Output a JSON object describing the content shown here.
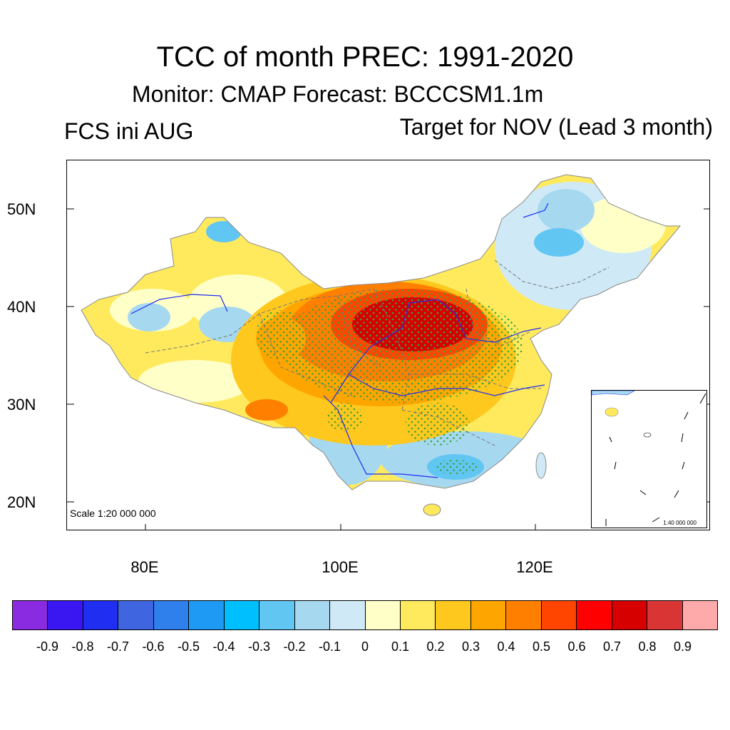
{
  "title": "TCC of month PREC: 1991-2020",
  "subtitle": "Monitor: CMAP   Forecast: BCCCSM1.1m",
  "left_label": "FCS ini AUG",
  "right_label": "Target for NOV (Lead 3 month)",
  "map": {
    "y_labels": [
      "50N",
      "40N",
      "30N",
      "20N"
    ],
    "x_labels": [
      "80E",
      "100E",
      "120E"
    ],
    "scale_main": "Scale 1:20 000 000",
    "scale_inset": "1:40 000 000",
    "significance_marker_color": "#3aa63a"
  },
  "colorbar": {
    "colors": [
      "#8a2be2",
      "#3a16f0",
      "#1f2ef0",
      "#3f66e0",
      "#2f7fec",
      "#1e9af5",
      "#00bfff",
      "#62c6f2",
      "#a6d8f0",
      "#cfeaf6",
      "#ffffc8",
      "#ffea5e",
      "#ffc81e",
      "#ffa500",
      "#ff7f00",
      "#ff4500",
      "#ff0000",
      "#d60000",
      "#d93535",
      "#ffaaaa"
    ],
    "labels": [
      "-0.9",
      "-0.8",
      "-0.7",
      "-0.6",
      "-0.5",
      "-0.4",
      "-0.3",
      "-0.2",
      "-0.1",
      "0",
      "0.1",
      "0.2",
      "0.3",
      "0.4",
      "0.5",
      "0.6",
      "0.7",
      "0.8",
      "0.9"
    ]
  }
}
